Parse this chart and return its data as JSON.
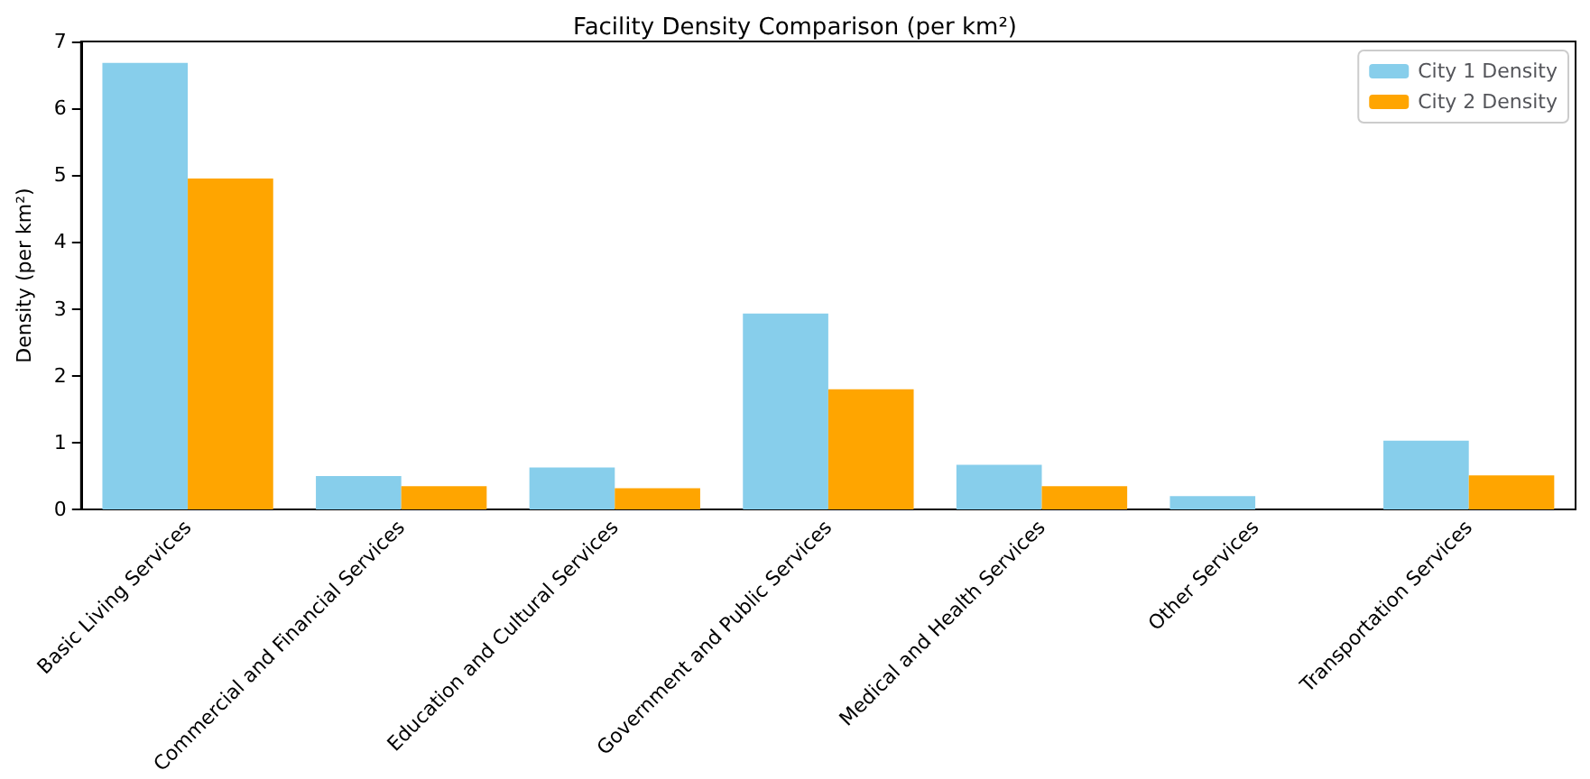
{
  "chart_data": {
    "type": "bar",
    "title": "Facility Density Comparison (per km²)",
    "ylabel": "Density (per km²)",
    "categories": [
      "Basic Living Services",
      "Commercial and Financial Services",
      "Education and Cultural Services",
      "Government and Public Services",
      "Medical and Health Services",
      "Other Services",
      "Transportation Services"
    ],
    "series": [
      {
        "name": "City 1 Density",
        "color": "#87ceeb",
        "values": [
          6.68,
          0.5,
          0.63,
          2.93,
          0.67,
          0.2,
          1.03
        ]
      },
      {
        "name": "City 2 Density",
        "color": "#ffa500",
        "values": [
          4.95,
          0.35,
          0.32,
          1.8,
          0.35,
          0,
          0.51
        ]
      }
    ],
    "ylim": [
      0,
      7
    ],
    "yticks": [
      0,
      1,
      2,
      3,
      4,
      5,
      6,
      7
    ],
    "grid": false,
    "legend": "top right"
  }
}
